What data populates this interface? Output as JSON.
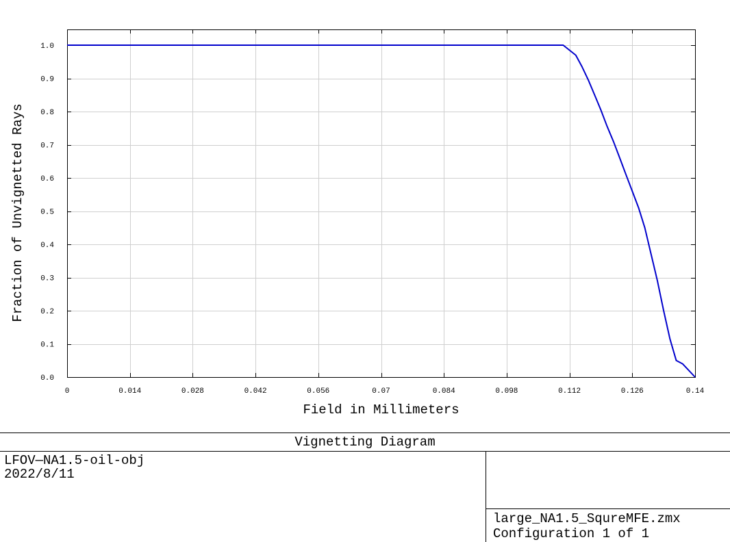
{
  "chart_data": {
    "type": "line",
    "title": "Vignetting Diagram",
    "xlabel": "Field in Millimeters",
    "ylabel": "Fraction of Unvignetted Rays",
    "xlim": [
      0,
      0.14
    ],
    "ylim": [
      0,
      1.05
    ],
    "x_ticks": [
      "0",
      "0.014",
      "0.028",
      "0.042",
      "0.056",
      "0.07",
      "0.084",
      "0.098",
      "0.112",
      "0.126",
      "0.14"
    ],
    "y_ticks": [
      "0.0",
      "0.1",
      "0.2",
      "0.3",
      "0.4",
      "0.5",
      "0.6",
      "0.7",
      "0.8",
      "0.9",
      "1.0"
    ],
    "grid": true,
    "series": [
      {
        "color": "#0000cc",
        "x": [
          0,
          0.0182,
          0.0364,
          0.0546,
          0.0728,
          0.091,
          0.1092,
          0.1106,
          0.1134,
          0.1148,
          0.1162,
          0.1176,
          0.119,
          0.1204,
          0.1218,
          0.1232,
          0.1246,
          0.126,
          0.1274,
          0.1288,
          0.1302,
          0.1316,
          0.133,
          0.1344,
          0.1358,
          0.1372,
          0.14
        ],
        "y": [
          1.0,
          1.0,
          1.0,
          1.0,
          1.0,
          1.0,
          1.0,
          1.0,
          0.97,
          0.935,
          0.895,
          0.85,
          0.805,
          0.755,
          0.71,
          0.66,
          0.61,
          0.56,
          0.51,
          0.45,
          0.37,
          0.29,
          0.2,
          0.115,
          0.05,
          0.04,
          0.0
        ]
      }
    ]
  },
  "footer": {
    "title": "Vignetting Diagram",
    "lens_name": "LFOV—NA1.5-oil-obj",
    "date": "2022/8/11",
    "file_name": "large_NA1.5_SqureMFE.zmx",
    "configuration": "Configuration 1 of 1"
  }
}
